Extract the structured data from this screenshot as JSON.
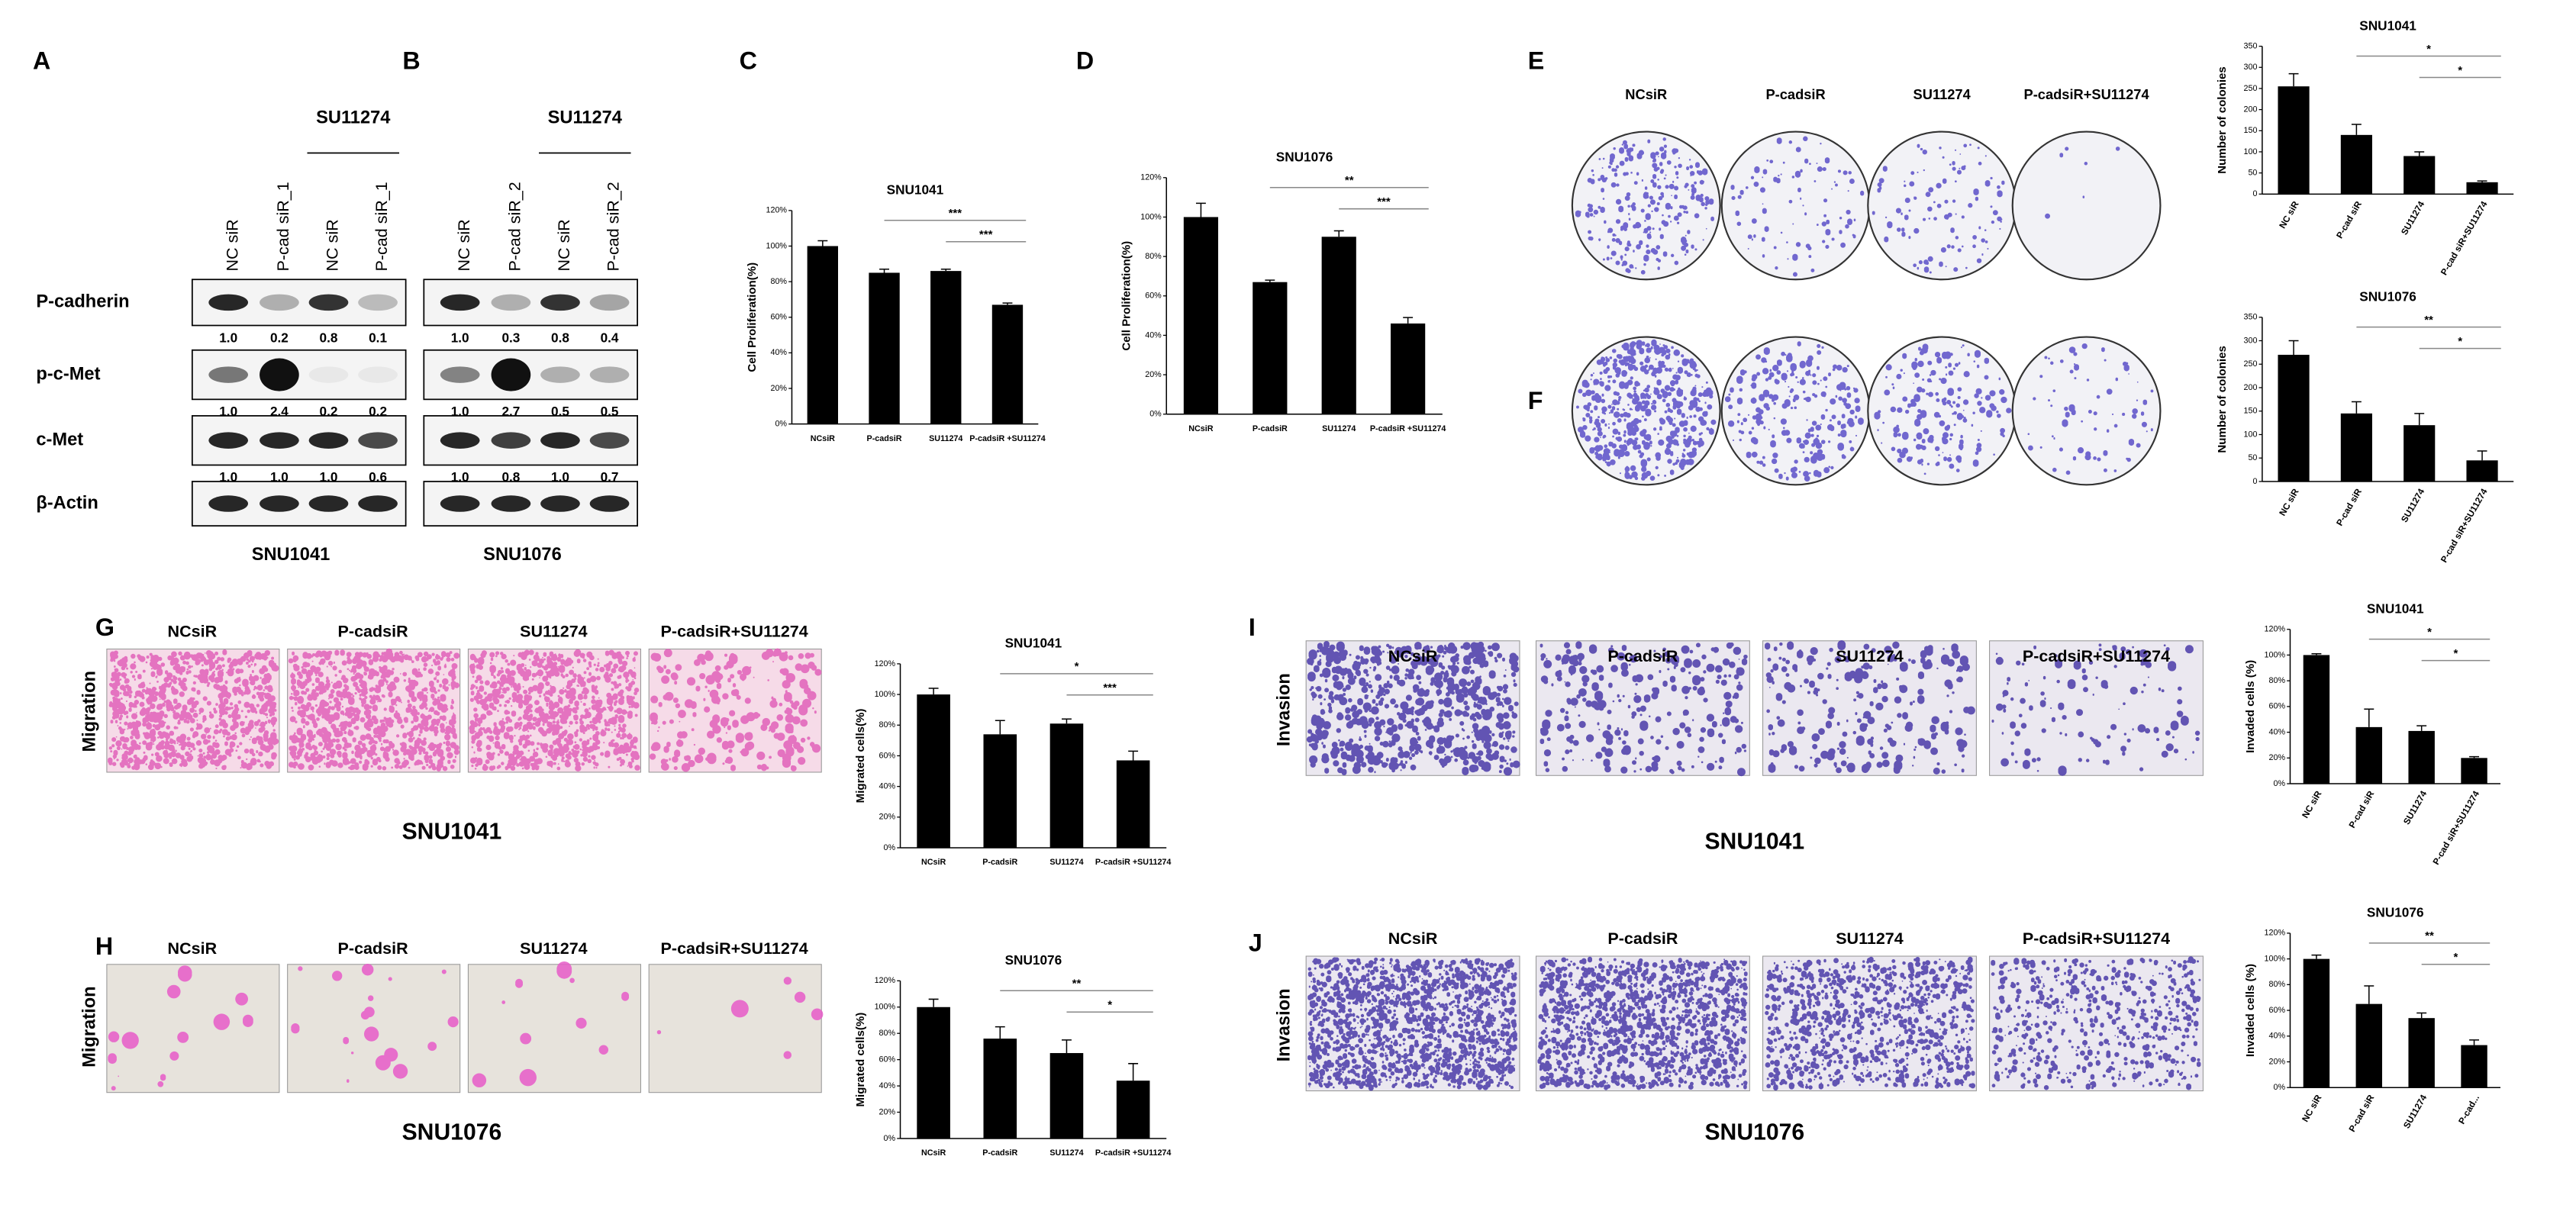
{
  "panel_labels": [
    "A",
    "B",
    "C",
    "D",
    "E",
    "F",
    "G",
    "H",
    "I",
    "J"
  ],
  "blot_rows": [
    "P-cadherin",
    "p-c-Met",
    "c-Met",
    "β-Actin"
  ],
  "blots": [
    {
      "treatment": "SU11274",
      "lanes": [
        "NC siR",
        "P-cad siR_1",
        "NC siR",
        "P-cad siR_1"
      ],
      "quant": [
        [
          "1.0",
          "0.2",
          "0.8",
          "0.1"
        ],
        [
          "1.0",
          "2.4",
          "0.2",
          "0.2"
        ],
        [
          "1.0",
          "1.0",
          "1.0",
          "0.6"
        ]
      ],
      "cell_line": "SNU1041"
    },
    {
      "treatment": "SU11274",
      "lanes": [
        "NC siR",
        "P-cad siR_2",
        "NC siR",
        "P-cad siR_2"
      ],
      "quant": [
        [
          "1.0",
          "0.3",
          "0.8",
          "0.4"
        ],
        [
          "1.0",
          "2.7",
          "0.5",
          "0.5"
        ],
        [
          "1.0",
          "0.8",
          "1.0",
          "0.7"
        ]
      ],
      "cell_line": "SNU1076"
    }
  ],
  "colony_plates": {
    "columns": [
      "NCsiR",
      "P-cadsiR",
      "SU11274",
      "P-cadsiR+SU11274"
    ]
  },
  "migration": {
    "row_label": "Migration",
    "columns": [
      "NCsiR",
      "P-cadsiR",
      "SU11274",
      "P-cadsiR+SU11274"
    ],
    "cell_lines": [
      "SNU1041",
      "SNU1076"
    ]
  },
  "invasion": {
    "row_label": "Invasion",
    "columns": [
      "NCsiR",
      "P-cadsiR",
      "SU11274",
      "P-cadsiR+SU11274"
    ],
    "cell_lines": [
      "SNU1041",
      "SNU1076"
    ]
  },
  "chart_data": [
    {
      "type": "bar",
      "title": "SNU1041",
      "y_label": "Cell Proliferation(%)",
      "categories": [
        "NCsiR",
        "P-cadsiR",
        "SU11274",
        "P-cadsiR +SU11274"
      ],
      "values": [
        100,
        85,
        86,
        67
      ],
      "errors": [
        3,
        2,
        1,
        1
      ],
      "color": "#000000",
      "ylim": [
        0,
        120
      ],
      "yticks": [
        {
          "value": 0,
          "label": "0%"
        },
        {
          "value": 20,
          "label": "20%"
        },
        {
          "value": 40,
          "label": "40%"
        },
        {
          "value": 60,
          "label": "60%"
        },
        {
          "value": 80,
          "label": "80%"
        },
        {
          "value": 100,
          "label": "100%"
        },
        {
          "value": 120,
          "label": "120%"
        }
      ],
      "annotations": [
        "***",
        "***"
      ],
      "rotate_labels": false
    },
    {
      "type": "bar",
      "title": "SNU1076",
      "y_label": "Cell Proliferation(%)",
      "categories": [
        "NCsiR",
        "P-cadsiR",
        "SU11274",
        "P-cadsiR +SU11274"
      ],
      "values": [
        100,
        67,
        90,
        46
      ],
      "errors": [
        7,
        1,
        3,
        3
      ],
      "color": "#000000",
      "ylim": [
        0,
        120
      ],
      "yticks": [
        {
          "value": 0,
          "label": "0%"
        },
        {
          "value": 20,
          "label": "20%"
        },
        {
          "value": 40,
          "label": "40%"
        },
        {
          "value": 60,
          "label": "60%"
        },
        {
          "value": 80,
          "label": "80%"
        },
        {
          "value": 100,
          "label": "100%"
        },
        {
          "value": 120,
          "label": "120%"
        }
      ],
      "annotations": [
        "**",
        "***"
      ],
      "rotate_labels": false
    },
    {
      "type": "bar",
      "title": "SNU1041",
      "y_label": "Number of colonies",
      "categories": [
        "NC siR",
        "P-cad siR",
        "SU11274",
        "P-cad siR+SU11274"
      ],
      "values": [
        255,
        140,
        90,
        28
      ],
      "errors": [
        30,
        25,
        10,
        3
      ],
      "color": "#000000",
      "ylim": [
        0,
        350
      ],
      "yticks": [
        0,
        50,
        100,
        150,
        200,
        250,
        300,
        350
      ],
      "annotations": [
        "*",
        "*"
      ],
      "rotate_labels": true
    },
    {
      "type": "bar",
      "title": "SNU1076",
      "y_label": "Number of colonies",
      "categories": [
        "NC siR",
        "P-cad siR",
        "SU11274",
        "P-cad siR+SU11274"
      ],
      "values": [
        270,
        145,
        120,
        45
      ],
      "errors": [
        30,
        25,
        25,
        20
      ],
      "color": "#000000",
      "ylim": [
        0,
        350
      ],
      "yticks": [
        0,
        50,
        100,
        150,
        200,
        250,
        300,
        350
      ],
      "annotations": [
        "**",
        "*"
      ],
      "rotate_labels": true
    },
    {
      "type": "bar",
      "title": "SNU1041",
      "y_label": "Migrated cells(%)",
      "categories": [
        "NCsiR",
        "P-cadsiR",
        "SU11274",
        "P-cadsiR +SU11274"
      ],
      "values": [
        100,
        74,
        81,
        57
      ],
      "errors": [
        4,
        9,
        3,
        6
      ],
      "color": "#000000",
      "ylim": [
        0,
        120
      ],
      "yticks": [
        {
          "value": 0,
          "label": "0%"
        },
        {
          "value": 20,
          "label": "20%"
        },
        {
          "value": 40,
          "label": "40%"
        },
        {
          "value": 60,
          "label": "60%"
        },
        {
          "value": 80,
          "label": "80%"
        },
        {
          "value": 100,
          "label": "100%"
        },
        {
          "value": 120,
          "label": "120%"
        }
      ],
      "annotations": [
        "*",
        "***"
      ],
      "rotate_labels": false
    },
    {
      "type": "bar",
      "title": "SNU1076",
      "y_label": "Migrated cells(%)",
      "categories": [
        "NCsiR",
        "P-cadsiR",
        "SU11274",
        "P-cadsiR +SU11274"
      ],
      "values": [
        100,
        76,
        65,
        44
      ],
      "errors": [
        6,
        9,
        10,
        13
      ],
      "color": "#000000",
      "ylim": [
        0,
        120
      ],
      "yticks": [
        {
          "value": 0,
          "label": "0%"
        },
        {
          "value": 20,
          "label": "20%"
        },
        {
          "value": 40,
          "label": "40%"
        },
        {
          "value": 60,
          "label": "60%"
        },
        {
          "value": 80,
          "label": "80%"
        },
        {
          "value": 100,
          "label": "100%"
        },
        {
          "value": 120,
          "label": "120%"
        }
      ],
      "annotations": [
        "**",
        "*"
      ],
      "rotate_labels": false
    },
    {
      "type": "bar",
      "title": "SNU1041",
      "y_label": "Invaded cells (%)",
      "categories": [
        "NC siR",
        "P-cad siR",
        "SU11274",
        "P-cad siR+SU11274"
      ],
      "values": [
        100,
        44,
        41,
        20
      ],
      "errors": [
        1,
        14,
        4,
        1
      ],
      "color": "#000000",
      "ylim": [
        0,
        120
      ],
      "yticks": [
        {
          "value": 0,
          "label": "0%"
        },
        {
          "value": 20,
          "label": "20%"
        },
        {
          "value": 40,
          "label": "40%"
        },
        {
          "value": 60,
          "label": "60%"
        },
        {
          "value": 80,
          "label": "80%"
        },
        {
          "value": 100,
          "label": "100%"
        },
        {
          "value": 120,
          "label": "120%"
        }
      ],
      "annotations": [
        "*",
        "*"
      ],
      "rotate_labels": true
    },
    {
      "type": "bar",
      "title": "SNU1076",
      "y_label": "Invaded cells (%)",
      "categories": [
        "NC siR",
        "P-cad siR",
        "SU11274",
        "P-cad..."
      ],
      "values": [
        100,
        65,
        54,
        33
      ],
      "errors": [
        3,
        14,
        4,
        4
      ],
      "color": "#000000",
      "ylim": [
        0,
        120
      ],
      "yticks": [
        {
          "value": 0,
          "label": "0%"
        },
        {
          "value": 20,
          "label": "20%"
        },
        {
          "value": 40,
          "label": "40%"
        },
        {
          "value": 60,
          "label": "60%"
        },
        {
          "value": 80,
          "label": "80%"
        },
        {
          "value": 100,
          "label": "100%"
        },
        {
          "value": 120,
          "label": "120%"
        }
      ],
      "annotations": [
        "**",
        "*"
      ],
      "rotate_labels": true
    }
  ]
}
